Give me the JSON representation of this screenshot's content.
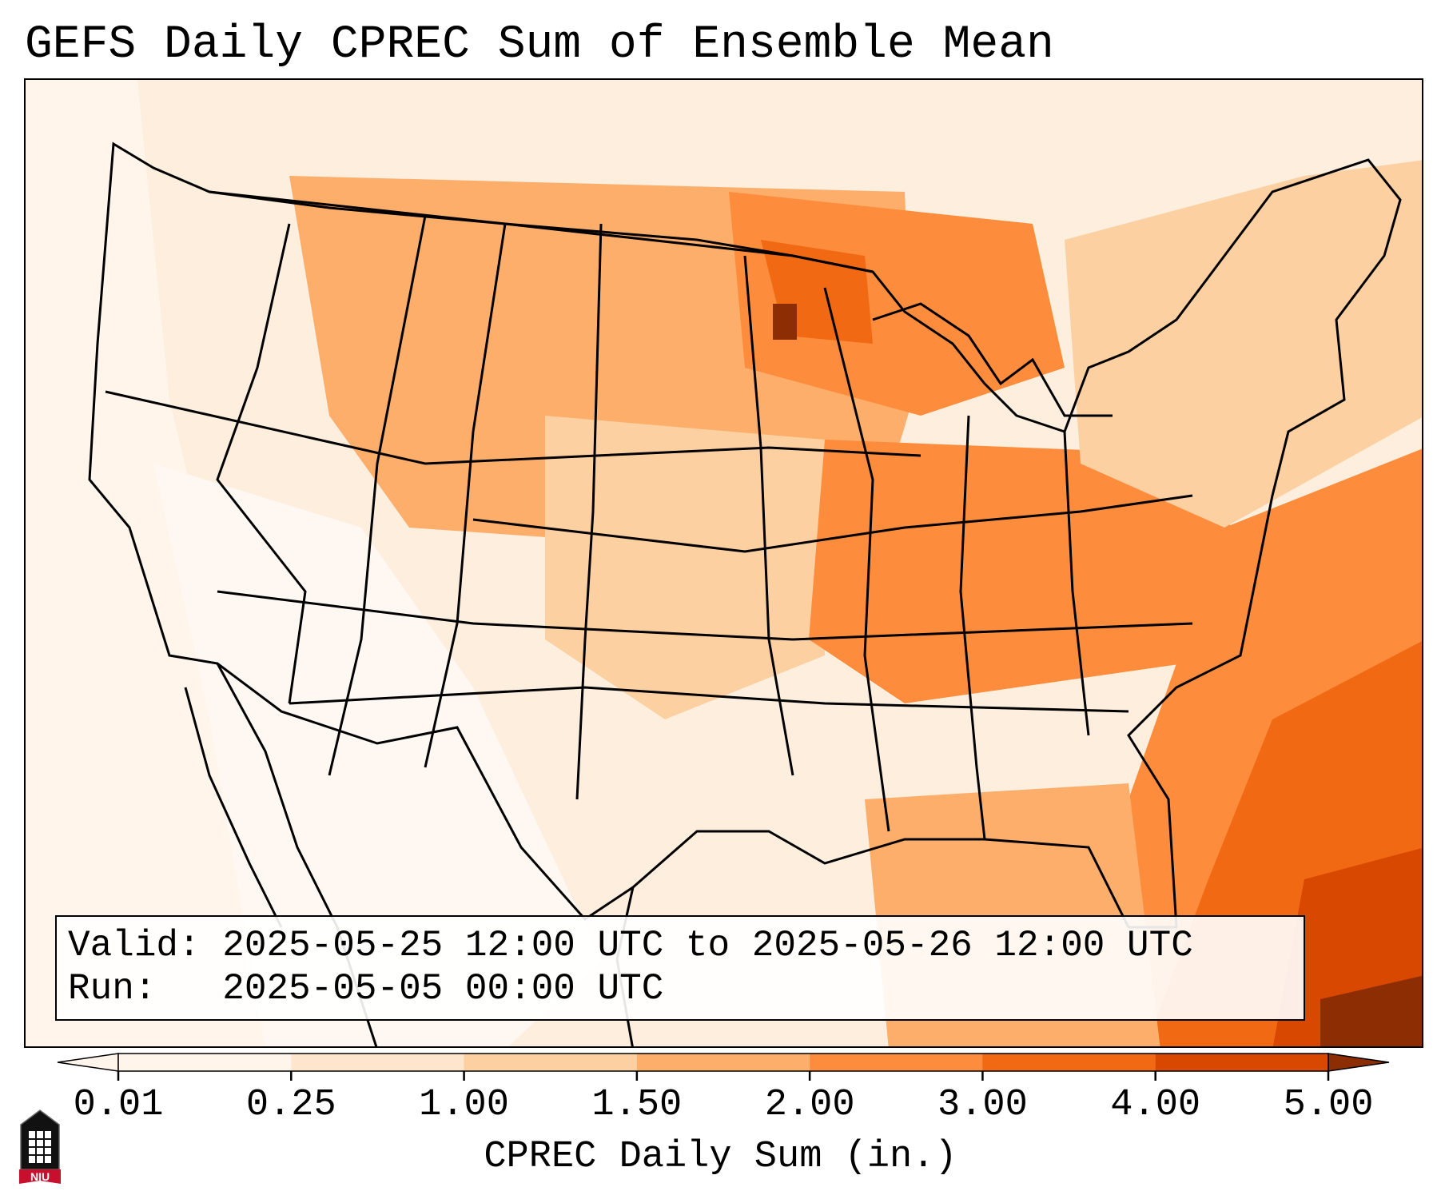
{
  "title": "GEFS Daily CPREC Sum of Ensemble Mean",
  "info": {
    "valid_line": "Valid: 2025-05-25 12:00 UTC to 2025-05-26 12:00 UTC",
    "run_line": "Run:   2025-05-05 00:00 UTC"
  },
  "colorbar": {
    "label": "CPREC Daily Sum (in.)",
    "ticks": [
      "0.01",
      "0.25",
      "1.00",
      "1.50",
      "2.00",
      "3.00",
      "4.00",
      "5.00"
    ],
    "colors": [
      "#fff5eb",
      "#fee6ce",
      "#fdd0a2",
      "#fdae6b",
      "#fd8d3c",
      "#f16913",
      "#d94801",
      "#8c2d04"
    ]
  },
  "logo": {
    "text": "NIU",
    "colors": {
      "red": "#c8102e",
      "black": "#000000",
      "white": "#ffffff"
    }
  },
  "map": {
    "region": "CONUS",
    "colors": {
      "border": "#000000",
      "ocean_light": "#fdeede"
    }
  }
}
